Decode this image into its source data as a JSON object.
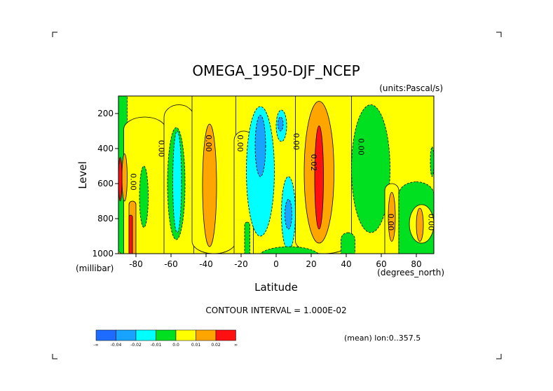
{
  "chart_data": {
    "type": "heatmap",
    "title": "OMEGA_1950-DJF_NCEP",
    "units_label": "(units:Pascal/s)",
    "xlabel": "Latitude",
    "xunits": "(degrees_north)",
    "ylabel": "Level",
    "yunits": "(millibar)",
    "xlim": [
      -90,
      90
    ],
    "ylim": [
      1000,
      100
    ],
    "x_ticks": [
      {
        "value": -80,
        "label": "-80"
      },
      {
        "value": -60,
        "label": "-60"
      },
      {
        "value": -40,
        "label": "-40"
      },
      {
        "value": -20,
        "label": "-20"
      },
      {
        "value": 0,
        "label": "0"
      },
      {
        "value": 20,
        "label": "20"
      },
      {
        "value": 40,
        "label": "40"
      },
      {
        "value": 60,
        "label": "60"
      },
      {
        "value": 80,
        "label": "80"
      }
    ],
    "y_ticks": [
      {
        "value": 200,
        "label": "200"
      },
      {
        "value": 400,
        "label": "400"
      },
      {
        "value": 600,
        "label": "600"
      },
      {
        "value": 800,
        "label": "800"
      },
      {
        "value": 1000,
        "label": "1000"
      }
    ],
    "contour_interval_text": "CONTOUR INTERVAL = 1.000E-02",
    "mean_note": "(mean) lon:0..357.5",
    "contour_labels": [
      {
        "lat": -83,
        "lev": 590,
        "text": "0.00"
      },
      {
        "lat": -67,
        "lev": 400,
        "text": "0.00"
      },
      {
        "lat": -40,
        "lev": 370,
        "text": "0.00"
      },
      {
        "lat": -22,
        "lev": 370,
        "text": "0.00"
      },
      {
        "lat": 10,
        "lev": 360,
        "text": "0.00"
      },
      {
        "lat": 20,
        "lev": 480,
        "text": "0.02"
      },
      {
        "lat": 47,
        "lev": 390,
        "text": "0.00"
      },
      {
        "lat": 64,
        "lev": 820,
        "text": "0.00"
      },
      {
        "lat": 87,
        "lev": 820,
        "text": "0.00"
      }
    ],
    "legend": {
      "colors": [
        "#1e6cff",
        "#17a3ff",
        "#00ffff",
        "#00e020",
        "#ffff00",
        "#ffa500",
        "#ff1010"
      ],
      "labels": [
        "-∞",
        "-0.04",
        "-0.02",
        "-0.01",
        "0.0",
        "0.01",
        "0.02",
        "∞"
      ]
    },
    "levels": [
      {
        "name": "lt_-0.04",
        "color": "#1e6cff"
      },
      {
        "name": "-0.04_-0.02",
        "color": "#17a3ff"
      },
      {
        "name": "-0.02_-0.01",
        "color": "#00ffff"
      },
      {
        "name": "-0.01_0.0",
        "color": "#00e020"
      },
      {
        "name": "0.0_0.01",
        "color": "#ffff00"
      },
      {
        "name": "0.01_0.02",
        "color": "#ffa500"
      },
      {
        "name": "gt_0.02",
        "color": "#ff1010"
      }
    ],
    "regions": [
      {
        "level": 3,
        "lat": [
          -90,
          -85
        ],
        "lev": [
          100,
          1000
        ]
      },
      {
        "level": 4,
        "lat": [
          -87,
          -63
        ],
        "lev": [
          220,
          1000
        ]
      },
      {
        "level": 5,
        "lat": [
          -88,
          -85
        ],
        "lev": [
          430,
          700
        ]
      },
      {
        "level": 6,
        "lat": [
          -90,
          -88
        ],
        "lev": [
          450,
          700
        ]
      },
      {
        "level": 5,
        "lat": [
          -84,
          -80
        ],
        "lev": [
          700,
          1000
        ]
      },
      {
        "level": 6,
        "lat": [
          -84,
          -82
        ],
        "lev": [
          780,
          1000
        ]
      },
      {
        "level": 3,
        "lat": [
          -78,
          -73
        ],
        "lev": [
          500,
          850
        ]
      },
      {
        "level": 4,
        "lat": [
          -64,
          -47
        ],
        "lev": [
          150,
          1000
        ]
      },
      {
        "level": 3,
        "lat": [
          -62,
          -52
        ],
        "lev": [
          280,
          920
        ]
      },
      {
        "level": 2,
        "lat": [
          -59,
          -54
        ],
        "lev": [
          300,
          880
        ]
      },
      {
        "level": 4,
        "lat": [
          -48,
          -23
        ],
        "lev": [
          100,
          1000
        ]
      },
      {
        "level": 5,
        "lat": [
          -42,
          -34
        ],
        "lev": [
          260,
          960
        ]
      },
      {
        "level": 4,
        "lat": [
          -24,
          -13
        ],
        "lev": [
          300,
          1000
        ]
      },
      {
        "level": 2,
        "lat": [
          -17,
          -1
        ],
        "lev": [
          160,
          900
        ]
      },
      {
        "level": 1,
        "lat": [
          -12,
          -6
        ],
        "lev": [
          210,
          560
        ]
      },
      {
        "level": 3,
        "lat": [
          -18,
          -15
        ],
        "lev": [
          820,
          1000
        ]
      },
      {
        "level": 2,
        "lat": [
          0,
          6
        ],
        "lev": [
          180,
          360
        ]
      },
      {
        "level": 1,
        "lat": [
          1,
          4
        ],
        "lev": [
          220,
          300
        ]
      },
      {
        "level": 2,
        "lat": [
          3,
          11
        ],
        "lev": [
          560,
          980
        ]
      },
      {
        "level": 1,
        "lat": [
          5,
          9
        ],
        "lev": [
          690,
          860
        ]
      },
      {
        "level": 4,
        "lat": [
          11,
          43
        ],
        "lev": [
          100,
          1000
        ]
      },
      {
        "level": 5,
        "lat": [
          16,
          33
        ],
        "lev": [
          130,
          940
        ]
      },
      {
        "level": 6,
        "lat": [
          22,
          27
        ],
        "lev": [
          270,
          860
        ]
      },
      {
        "level": 3,
        "lat": [
          37,
          45
        ],
        "lev": [
          880,
          1000
        ]
      },
      {
        "level": 3,
        "lat": [
          43,
          65
        ],
        "lev": [
          150,
          880
        ]
      },
      {
        "level": 4,
        "lat": [
          62,
          70
        ],
        "lev": [
          600,
          1000
        ]
      },
      {
        "level": 5,
        "lat": [
          64,
          68
        ],
        "lev": [
          650,
          930
        ]
      },
      {
        "level": 3,
        "lat": [
          70,
          90
        ],
        "lev": [
          590,
          1000
        ]
      },
      {
        "level": 4,
        "lat": [
          76,
          90
        ],
        "lev": [
          720,
          940
        ]
      },
      {
        "level": 5,
        "lat": [
          80,
          84
        ],
        "lev": [
          740,
          930
        ]
      },
      {
        "level": 3,
        "lat": [
          88,
          90
        ],
        "lev": [
          390,
          560
        ]
      },
      {
        "level": 3,
        "lat": [
          -10,
          25
        ],
        "lev": [
          960,
          1000
        ]
      }
    ]
  }
}
